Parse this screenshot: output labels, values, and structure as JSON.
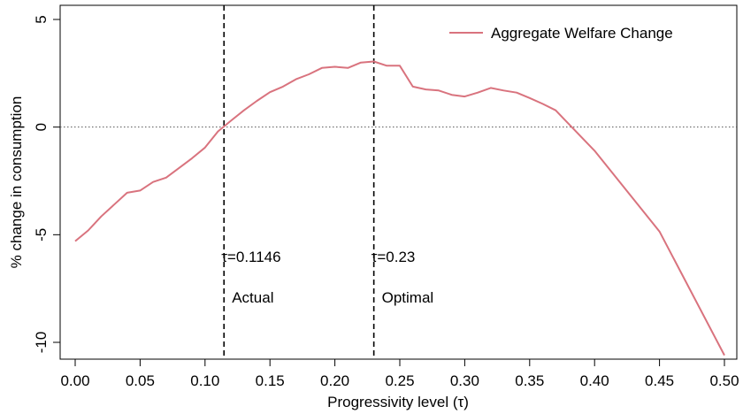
{
  "chart_data": {
    "type": "line",
    "title": "",
    "xlabel": "Progressivity level (τ)",
    "ylabel": "% change in consumption",
    "xlim": [
      0,
      0.5
    ],
    "ylim": [
      -11,
      5
    ],
    "x_ticks": [
      0.0,
      0.05,
      0.1,
      0.15,
      0.2,
      0.25,
      0.3,
      0.35,
      0.4,
      0.45,
      0.5
    ],
    "x_tick_labels": [
      "0.00",
      "0.05",
      "0.10",
      "0.15",
      "0.20",
      "0.25",
      "0.30",
      "0.35",
      "0.40",
      "0.45",
      "0.50"
    ],
    "y_ticks": [
      -10,
      -5,
      0,
      5
    ],
    "y_tick_labels": [
      "-10",
      "-5",
      "0",
      "5"
    ],
    "grid": false,
    "zero_line": true,
    "legend": {
      "position": "top-right",
      "entries": [
        "Aggregate Welfare Change"
      ]
    },
    "series": [
      {
        "name": "Aggregate Welfare Change",
        "color": "#d9737e",
        "x": [
          0.0,
          0.01,
          0.02,
          0.03,
          0.04,
          0.05,
          0.06,
          0.07,
          0.08,
          0.09,
          0.1,
          0.11,
          0.12,
          0.13,
          0.14,
          0.15,
          0.16,
          0.17,
          0.18,
          0.19,
          0.2,
          0.21,
          0.22,
          0.23,
          0.24,
          0.25,
          0.26,
          0.27,
          0.28,
          0.29,
          0.3,
          0.31,
          0.32,
          0.33,
          0.34,
          0.35,
          0.36,
          0.37,
          0.4,
          0.45,
          0.5
        ],
        "y": [
          -5.3,
          -4.8,
          -4.15,
          -3.6,
          -3.05,
          -2.95,
          -2.55,
          -2.35,
          -1.9,
          -1.45,
          -0.95,
          -0.2,
          0.3,
          0.78,
          1.22,
          1.62,
          1.88,
          2.22,
          2.45,
          2.75,
          2.8,
          2.75,
          3.0,
          3.05,
          2.85,
          2.85,
          1.88,
          1.75,
          1.7,
          1.5,
          1.42,
          1.6,
          1.82,
          1.7,
          1.6,
          1.35,
          1.08,
          0.78,
          -1.1,
          -4.85,
          -10.6
        ]
      }
    ],
    "vlines": [
      {
        "x": 0.1146,
        "label": "τ=0.1146",
        "sublabel": "Actual"
      },
      {
        "x": 0.23,
        "label": "τ=0.23",
        "sublabel": "Optimal"
      }
    ]
  }
}
